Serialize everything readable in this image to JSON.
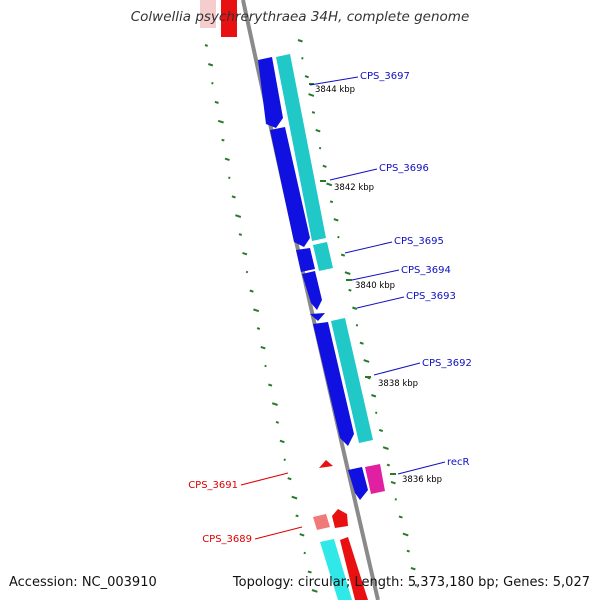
{
  "title": "Colwellia psychrerythraea 34H, complete genome",
  "footer": {
    "accession": "Accession: NC_003910",
    "summary": "Topology: circular; Length: 5,373,180 bp; Genes: 5,027"
  },
  "colors": {
    "backbone": "#8a8a8a",
    "gc_skew": "#2a7a2a",
    "forward_gene": "#1010e0",
    "forward_cds": "#20c8c8",
    "reverse_gene": "#e81010",
    "reverse_cds": "#f07a7a",
    "rna": "#e020a0",
    "label_forward": "#1010c0",
    "label_reverse": "#e00000"
  },
  "kbp_ticks": [
    "3844 kbp",
    "3842 kbp",
    "3840 kbp",
    "3838 kbp",
    "3836 kbp"
  ],
  "genes_forward": [
    {
      "label": "CPS_3697"
    },
    {
      "label": "CPS_3696"
    },
    {
      "label": "CPS_3695"
    },
    {
      "label": "CPS_3694"
    },
    {
      "label": "CPS_3693"
    },
    {
      "label": "CPS_3692"
    },
    {
      "label": "recR"
    }
  ],
  "genes_reverse": [
    {
      "label": "CPS_3691"
    },
    {
      "label": "CPS_3689"
    }
  ]
}
